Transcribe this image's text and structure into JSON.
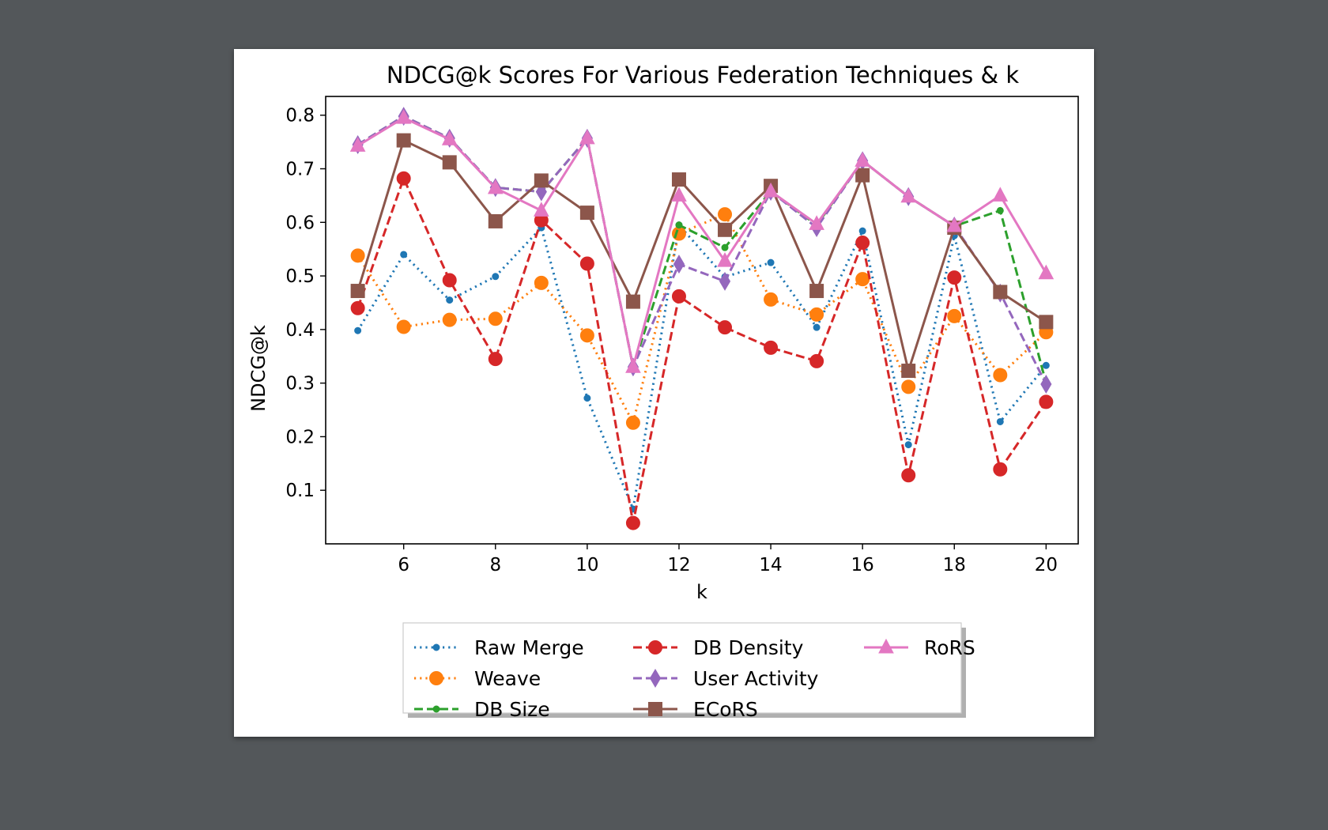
{
  "chart_data": {
    "type": "line",
    "title": "NDCG@k Scores For Various Federation Techniques & k",
    "xlabel": "k",
    "ylabel": "NDCG@k",
    "xlim": [
      4.3,
      20.7
    ],
    "ylim": [
      0.0,
      0.835
    ],
    "xticks": [
      "6",
      "8",
      "10",
      "12",
      "14",
      "16",
      "18",
      "20"
    ],
    "yticks": [
      "0.1",
      "0.2",
      "0.3",
      "0.4",
      "0.5",
      "0.6",
      "0.7",
      "0.8"
    ],
    "grid": false,
    "legend_position": "bottom-center",
    "x": [
      5,
      6,
      7,
      8,
      9,
      10,
      11,
      12,
      13,
      14,
      15,
      16,
      17,
      18,
      19,
      20
    ],
    "series": [
      {
        "name": "Raw Merge",
        "color": "#1f77b4",
        "line": "dotted",
        "marker": "small-circle",
        "values": [
          0.398,
          0.54,
          0.455,
          0.499,
          0.59,
          0.272,
          0.065,
          0.595,
          0.498,
          0.525,
          0.404,
          0.584,
          0.185,
          0.575,
          0.228,
          0.333
        ]
      },
      {
        "name": "Weave",
        "color": "#ff7f0e",
        "line": "dotted",
        "marker": "circle",
        "values": [
          0.538,
          0.405,
          0.418,
          0.42,
          0.487,
          0.389,
          0.226,
          0.579,
          0.615,
          0.456,
          0.428,
          0.494,
          0.293,
          0.425,
          0.315,
          0.395
        ]
      },
      {
        "name": "DB Size",
        "color": "#2ca02c",
        "line": "dashed",
        "marker": "small-circle",
        "values": [
          0.745,
          0.798,
          0.757,
          0.665,
          0.657,
          0.757,
          0.33,
          0.595,
          0.553,
          0.658,
          0.595,
          0.715,
          0.648,
          0.593,
          0.622,
          0.3
        ]
      },
      {
        "name": "DB Density",
        "color": "#d62728",
        "line": "dashed",
        "marker": "circle",
        "values": [
          0.44,
          0.682,
          0.492,
          0.345,
          0.604,
          0.523,
          0.039,
          0.462,
          0.404,
          0.366,
          0.341,
          0.562,
          0.128,
          0.497,
          0.139,
          0.265
        ]
      },
      {
        "name": "User Activity",
        "color": "#9467bd",
        "line": "dashed",
        "marker": "diamond",
        "values": [
          0.745,
          0.798,
          0.757,
          0.665,
          0.657,
          0.757,
          0.33,
          0.522,
          0.49,
          0.658,
          0.59,
          0.715,
          0.648,
          0.593,
          0.468,
          0.298
        ]
      },
      {
        "name": "ECoRS",
        "color": "#8c564b",
        "line": "solid",
        "marker": "square",
        "values": [
          0.472,
          0.753,
          0.712,
          0.602,
          0.678,
          0.618,
          0.452,
          0.68,
          0.586,
          0.668,
          0.472,
          0.688,
          0.323,
          0.59,
          0.47,
          0.414
        ]
      },
      {
        "name": "RoRS",
        "color": "#e377c2",
        "line": "solid",
        "marker": "triangle",
        "values": [
          0.743,
          0.795,
          0.755,
          0.664,
          0.622,
          0.757,
          0.33,
          0.65,
          0.528,
          0.658,
          0.597,
          0.715,
          0.648,
          0.593,
          0.65,
          0.505
        ]
      }
    ]
  }
}
